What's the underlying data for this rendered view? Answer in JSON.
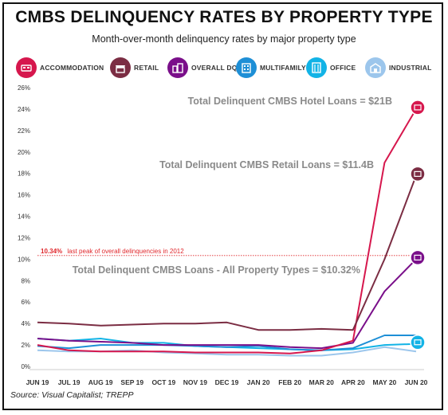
{
  "title": "CMBS DELINQUENCY RATES BY PROPERTY TYPE",
  "subtitle": "Month-over-month delinquency rates by major property type",
  "source": "Source: Visual Capitalist; TREPP",
  "legend": [
    {
      "label": "ACCOMMODATION",
      "color": "#d6174d",
      "icon": "bed-icon"
    },
    {
      "label": "RETAIL",
      "color": "#7b2d43",
      "icon": "storefront-icon"
    },
    {
      "label": "OVERALL DQ*",
      "color": "#7a0f8a",
      "icon": "buildings-icon"
    },
    {
      "label": "MULTIFAMILY",
      "color": "#1e8fd6",
      "icon": "apartment-icon"
    },
    {
      "label": "OFFICE",
      "color": "#12b3e6",
      "icon": "office-icon"
    },
    {
      "label": "INDUSTRIAL",
      "color": "#9cc6ec",
      "icon": "warehouse-icon"
    }
  ],
  "annotations": {
    "hotel": "Total Delinquent CMBS Hotel Loans = $21B",
    "retail": "Total Delinquent CMBS Retail Loans = $11.4B",
    "all": "Total Delinquent CMBS Loans - All Property Types = $10.32%",
    "peak_value": "10.34%",
    "peak_text": "last peak of overall delinquencies in 2012"
  },
  "chart_data": {
    "type": "line",
    "title": "CMBS DELINQUENCY RATES BY PROPERTY TYPE",
    "subtitle": "Month-over-month delinquency rates by major property type",
    "categories": [
      "JUN 19",
      "JUL 19",
      "AUG 19",
      "SEP 19",
      "OCT 19",
      "NOV 19",
      "DEC 19",
      "JAN 20",
      "FEB 20",
      "MAR 20",
      "APR 20",
      "MAY 20",
      "JUN 20"
    ],
    "y_ticks": [
      "0%",
      "2%",
      "4%",
      "6%",
      "8%",
      "10%",
      "12%",
      "14%",
      "16%",
      "18%",
      "20%",
      "22%",
      "24%",
      "26%"
    ],
    "ylim": [
      0,
      26
    ],
    "grid": false,
    "legend_position": "top",
    "reference_line": {
      "value": 10.34,
      "label": "10.34% last peak of overall delinquencies in 2012",
      "color": "#e0262b"
    },
    "series": [
      {
        "name": "INDUSTRIAL",
        "color": "#9cc6ec",
        "values": [
          1.5,
          1.4,
          1.4,
          1.5,
          1.3,
          1.2,
          1.1,
          1.1,
          1.0,
          1.0,
          1.3,
          1.8,
          1.4
        ]
      },
      {
        "name": "OFFICE",
        "color": "#12b3e6",
        "values": [
          2.6,
          2.4,
          2.6,
          2.2,
          2.2,
          1.9,
          1.8,
          1.7,
          1.6,
          1.5,
          1.6,
          2.0,
          2.1
        ]
      },
      {
        "name": "MULTIFAMILY",
        "color": "#1e8fd6",
        "values": [
          1.9,
          1.7,
          2.0,
          2.0,
          2.0,
          1.9,
          1.8,
          1.9,
          1.6,
          1.5,
          1.7,
          2.9,
          2.9
        ]
      },
      {
        "name": "OVERALL DQ*",
        "color": "#7a0f8a",
        "values": [
          2.6,
          2.4,
          2.3,
          2.2,
          2.0,
          2.0,
          2.0,
          2.0,
          1.8,
          1.7,
          2.2,
          7.0,
          10.0
        ]
      },
      {
        "name": "ACCOMMODATION",
        "color": "#d6174d",
        "values": [
          2.0,
          1.5,
          1.4,
          1.4,
          1.4,
          1.3,
          1.3,
          1.3,
          1.2,
          1.5,
          2.4,
          19.0,
          24.0
        ]
      },
      {
        "name": "RETAIL",
        "color": "#7b2d43",
        "values": [
          4.1,
          4.0,
          3.8,
          3.9,
          4.0,
          4.0,
          4.1,
          3.4,
          3.4,
          3.5,
          3.4,
          10.0,
          17.8
        ]
      }
    ]
  }
}
